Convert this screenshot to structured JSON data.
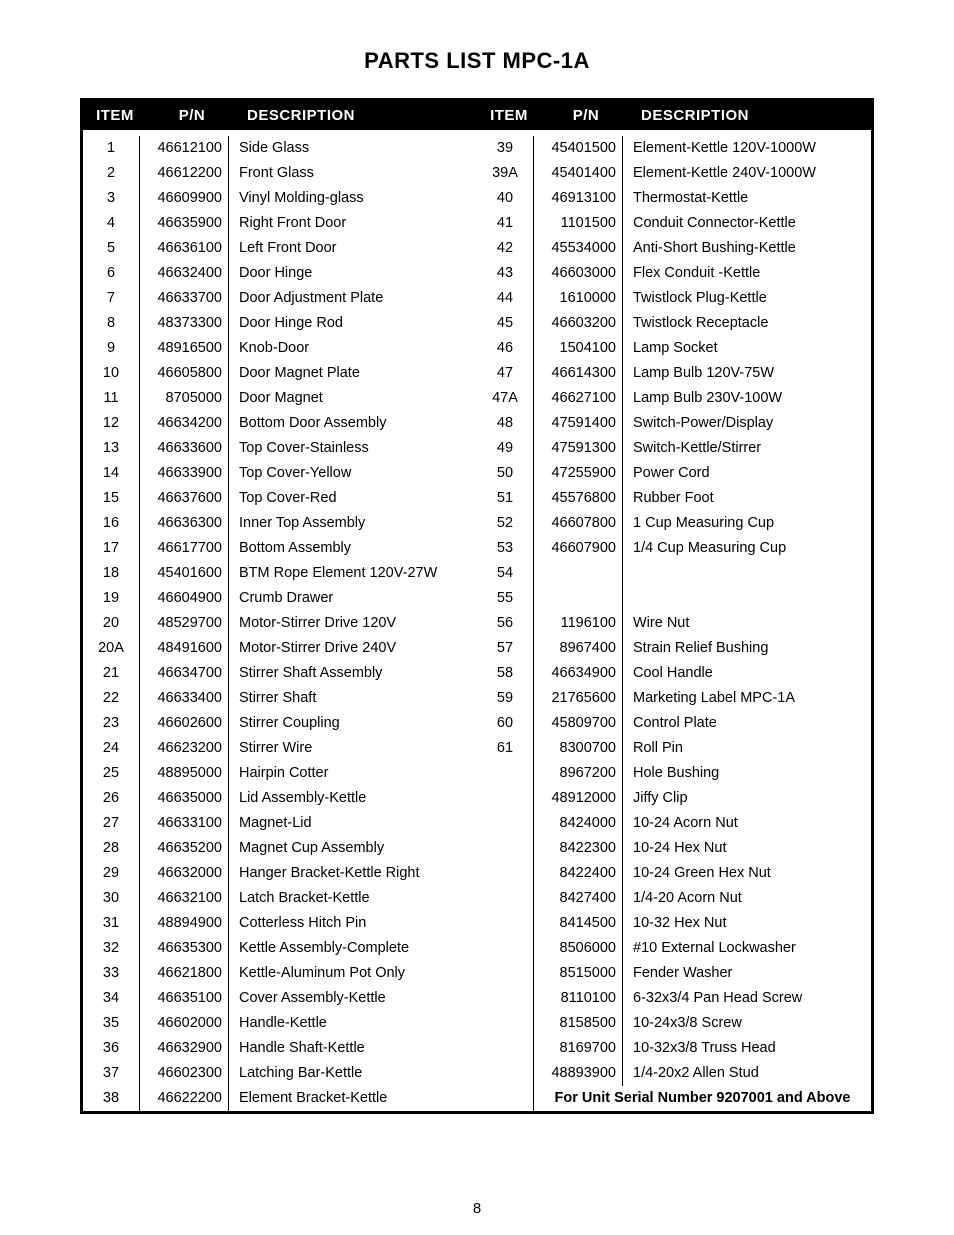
{
  "title": "PARTS LIST MPC-1A",
  "page_number": "8",
  "headers": {
    "item": "Item",
    "pn": "P/N",
    "description": "Description"
  },
  "left_rows": [
    {
      "item": "1",
      "pn": "46612100",
      "desc": "Side Glass"
    },
    {
      "item": "2",
      "pn": "46612200",
      "desc": "Front Glass"
    },
    {
      "item": "3",
      "pn": "46609900",
      "desc": "Vinyl Molding-glass"
    },
    {
      "item": "4",
      "pn": "46635900",
      "desc": "Right Front Door"
    },
    {
      "item": "5",
      "pn": "46636100",
      "desc": "Left Front Door"
    },
    {
      "item": "6",
      "pn": "46632400",
      "desc": "Door Hinge"
    },
    {
      "item": "7",
      "pn": "46633700",
      "desc": "Door Adjustment Plate"
    },
    {
      "item": "8",
      "pn": "48373300",
      "desc": "Door Hinge Rod"
    },
    {
      "item": "9",
      "pn": "48916500",
      "desc": "Knob-Door"
    },
    {
      "item": "10",
      "pn": "46605800",
      "desc": "Door Magnet Plate"
    },
    {
      "item": "11",
      "pn": "8705000",
      "desc": "Door Magnet"
    },
    {
      "item": "12",
      "pn": "46634200",
      "desc": "Bottom Door Assembly"
    },
    {
      "item": "13",
      "pn": "46633600",
      "desc": "Top Cover-Stainless"
    },
    {
      "item": "14",
      "pn": "46633900",
      "desc": "Top Cover-Yellow"
    },
    {
      "item": "15",
      "pn": "46637600",
      "desc": "Top Cover-Red"
    },
    {
      "item": "16",
      "pn": "46636300",
      "desc": "Inner Top Assembly"
    },
    {
      "item": "17",
      "pn": "46617700",
      "desc": "Bottom Assembly"
    },
    {
      "item": "18",
      "pn": "45401600",
      "desc": "BTM Rope Element 120V-27W"
    },
    {
      "item": "19",
      "pn": "46604900",
      "desc": "Crumb Drawer"
    },
    {
      "item": "20",
      "pn": "48529700",
      "desc": "Motor-Stirrer Drive 120V"
    },
    {
      "item": "20A",
      "pn": "48491600",
      "desc": "Motor-Stirrer Drive 240V"
    },
    {
      "item": "21",
      "pn": "46634700",
      "desc": "Stirrer Shaft Assembly"
    },
    {
      "item": "22",
      "pn": "46633400",
      "desc": "Stirrer Shaft"
    },
    {
      "item": "23",
      "pn": "46602600",
      "desc": "Stirrer Coupling"
    },
    {
      "item": "24",
      "pn": "46623200",
      "desc": "Stirrer Wire"
    },
    {
      "item": "25",
      "pn": "48895000",
      "desc": "Hairpin Cotter"
    },
    {
      "item": "26",
      "pn": "46635000",
      "desc": "Lid Assembly-Kettle"
    },
    {
      "item": "27",
      "pn": "46633100",
      "desc": "Magnet-Lid"
    },
    {
      "item": "28",
      "pn": "46635200",
      "desc": "Magnet Cup Assembly"
    },
    {
      "item": "29",
      "pn": "46632000",
      "desc": "Hanger Bracket-Kettle Right"
    },
    {
      "item": "30",
      "pn": "46632100",
      "desc": "Latch Bracket-Kettle"
    },
    {
      "item": "31",
      "pn": "48894900",
      "desc": "Cotterless Hitch Pin"
    },
    {
      "item": "32",
      "pn": "46635300",
      "desc": "Kettle Assembly-Complete"
    },
    {
      "item": "33",
      "pn": "46621800",
      "desc": "Kettle-Aluminum Pot Only"
    },
    {
      "item": "34",
      "pn": "46635100",
      "desc": "Cover Assembly-Kettle"
    },
    {
      "item": "35",
      "pn": "46602000",
      "desc": "Handle-Kettle"
    },
    {
      "item": "36",
      "pn": "46632900",
      "desc": "Handle Shaft-Kettle"
    },
    {
      "item": "37",
      "pn": "46602300",
      "desc": "Latching Bar-Kettle"
    },
    {
      "item": "38",
      "pn": "46622200",
      "desc": "Element Bracket-Kettle"
    }
  ],
  "right_rows": [
    {
      "item": "39",
      "pn": "45401500",
      "desc": "Element-Kettle 120V-1000W"
    },
    {
      "item": "39A",
      "pn": "45401400",
      "desc": "Element-Kettle 240V-1000W"
    },
    {
      "item": "40",
      "pn": "46913100",
      "desc": "Thermostat-Kettle"
    },
    {
      "item": "41",
      "pn": "1101500",
      "desc": "Conduit Connector-Kettle"
    },
    {
      "item": "42",
      "pn": "45534000",
      "desc": "Anti-Short Bushing-Kettle"
    },
    {
      "item": "43",
      "pn": "46603000",
      "desc": "Flex Conduit -Kettle"
    },
    {
      "item": "44",
      "pn": "1610000",
      "desc": "Twistlock Plug-Kettle"
    },
    {
      "item": "45",
      "pn": "46603200",
      "desc": "Twistlock Receptacle"
    },
    {
      "item": "46",
      "pn": "1504100",
      "desc": "Lamp Socket"
    },
    {
      "item": "47",
      "pn": "46614300",
      "desc": "Lamp Bulb 120V-75W"
    },
    {
      "item": "47A",
      "pn": "46627100",
      "desc": "Lamp Bulb 230V-100W"
    },
    {
      "item": "48",
      "pn": "47591400",
      "desc": "Switch-Power/Display"
    },
    {
      "item": "49",
      "pn": "47591300",
      "desc": "Switch-Kettle/Stirrer"
    },
    {
      "item": "50",
      "pn": "47255900",
      "desc": "Power Cord"
    },
    {
      "item": "51",
      "pn": "45576800",
      "desc": "Rubber Foot"
    },
    {
      "item": "52",
      "pn": "46607800",
      "desc": "1 Cup Measuring Cup"
    },
    {
      "item": "53",
      "pn": "46607900",
      "desc": "1/4 Cup Measuring Cup"
    },
    {
      "item": "54",
      "pn": "",
      "desc": ""
    },
    {
      "item": "55",
      "pn": "",
      "desc": ""
    },
    {
      "item": "56",
      "pn": "1196100",
      "desc": "Wire Nut"
    },
    {
      "item": "57",
      "pn": "8967400",
      "desc": "Strain Relief Bushing"
    },
    {
      "item": "58",
      "pn": "46634900",
      "desc": "Cool Handle"
    },
    {
      "item": "59",
      "pn": "21765600",
      "desc": "Marketing Label MPC-1A"
    },
    {
      "item": "60",
      "pn": "45809700",
      "desc": "Control Plate"
    },
    {
      "item": "61",
      "pn": "8300700",
      "desc": "Roll Pin"
    },
    {
      "item": "",
      "pn": "8967200",
      "desc": "Hole Bushing"
    },
    {
      "item": "",
      "pn": "48912000",
      "desc": "Jiffy Clip"
    },
    {
      "item": "",
      "pn": "8424000",
      "desc": "10-24 Acorn Nut"
    },
    {
      "item": "",
      "pn": "8422300",
      "desc": "10-24 Hex Nut"
    },
    {
      "item": "",
      "pn": "8422400",
      "desc": "10-24 Green Hex Nut"
    },
    {
      "item": "",
      "pn": "8427400",
      "desc": "1/4-20 Acorn Nut"
    },
    {
      "item": "",
      "pn": "8414500",
      "desc": "10-32 Hex Nut"
    },
    {
      "item": "",
      "pn": "8506000",
      "desc": "#10 External Lockwasher"
    },
    {
      "item": "",
      "pn": "8515000",
      "desc": "Fender Washer"
    },
    {
      "item": "",
      "pn": "8110100",
      "desc": "6-32x3/4 Pan Head Screw"
    },
    {
      "item": "",
      "pn": "8158500",
      "desc": "10-24x3/8 Screw"
    },
    {
      "item": "",
      "pn": "8169700",
      "desc": "10-32x3/8 Truss Head"
    },
    {
      "item": "",
      "pn": "48893900",
      "desc": "1/4-20x2 Allen Stud"
    }
  ],
  "footnote": "For Unit Serial Number 9207001 and Above"
}
